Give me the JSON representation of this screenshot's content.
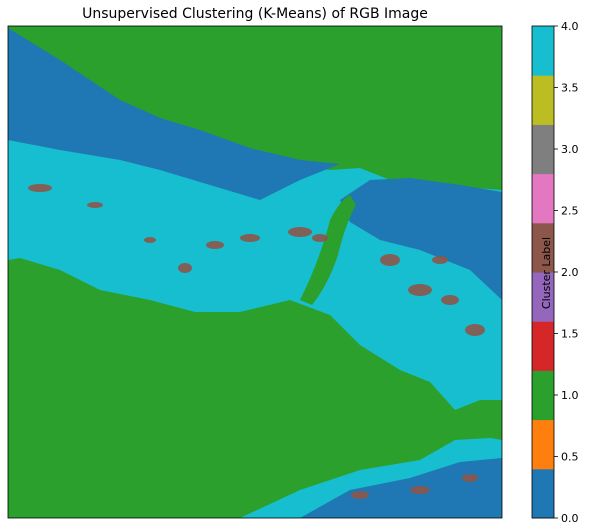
{
  "chart_data": {
    "type": "heatmap",
    "title": "Unsupervised Clustering (K-Means) of RGB Image",
    "colorbar": {
      "label": "Cluster Label",
      "range": [
        0.0,
        4.0
      ],
      "ticks": [
        "0.0",
        "0.5",
        "1.0",
        "1.5",
        "2.0",
        "2.5",
        "3.0",
        "3.5",
        "4.0"
      ],
      "cmap_colors": [
        "#1f77b4",
        "#ff7f0e",
        "#2ca02c",
        "#d62728",
        "#9467bd",
        "#8c564b",
        "#e377c2",
        "#7f7f7f",
        "#bcbd22",
        "#17becf"
      ]
    },
    "clusters": [
      {
        "label": 0,
        "color": "#1f77b4"
      },
      {
        "label": 1,
        "color": "#2ca02c"
      },
      {
        "label": 2,
        "color": "#8c564b"
      },
      {
        "label": 3,
        "color": "#d62728"
      },
      {
        "label": 4,
        "color": "#17becf"
      }
    ]
  }
}
